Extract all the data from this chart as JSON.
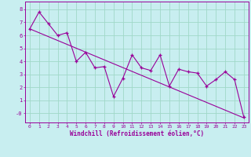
{
  "xlabel": "Windchill (Refroidissement éolien,°C)",
  "background_color": "#c8eef0",
  "grid_color": "#a0d8c8",
  "line_color": "#990099",
  "xlim": [
    -0.5,
    23.5
  ],
  "ylim": [
    -0.7,
    8.6
  ],
  "xticks": [
    0,
    1,
    2,
    3,
    4,
    5,
    6,
    7,
    8,
    9,
    10,
    11,
    12,
    13,
    14,
    15,
    16,
    17,
    18,
    19,
    20,
    21,
    22,
    23
  ],
  "yticks": [
    0,
    1,
    2,
    3,
    4,
    5,
    6,
    7,
    8
  ],
  "ytick_labels": [
    "-0",
    "1",
    "2",
    "3",
    "4",
    "5",
    "6",
    "7",
    "8"
  ],
  "data_x": [
    0,
    1,
    2,
    3,
    4,
    5,
    6,
    7,
    8,
    9,
    10,
    11,
    12,
    13,
    14,
    15,
    16,
    17,
    18,
    19,
    20,
    21,
    22,
    23
  ],
  "data_y": [
    6.5,
    7.8,
    6.9,
    6.0,
    6.2,
    4.0,
    4.7,
    3.5,
    3.6,
    1.3,
    2.7,
    4.5,
    3.5,
    3.3,
    4.5,
    2.1,
    3.4,
    3.2,
    3.1,
    2.1,
    2.6,
    3.2,
    2.6,
    -0.3
  ],
  "trend_x": [
    0,
    23
  ],
  "trend_y": [
    6.5,
    -0.35
  ]
}
